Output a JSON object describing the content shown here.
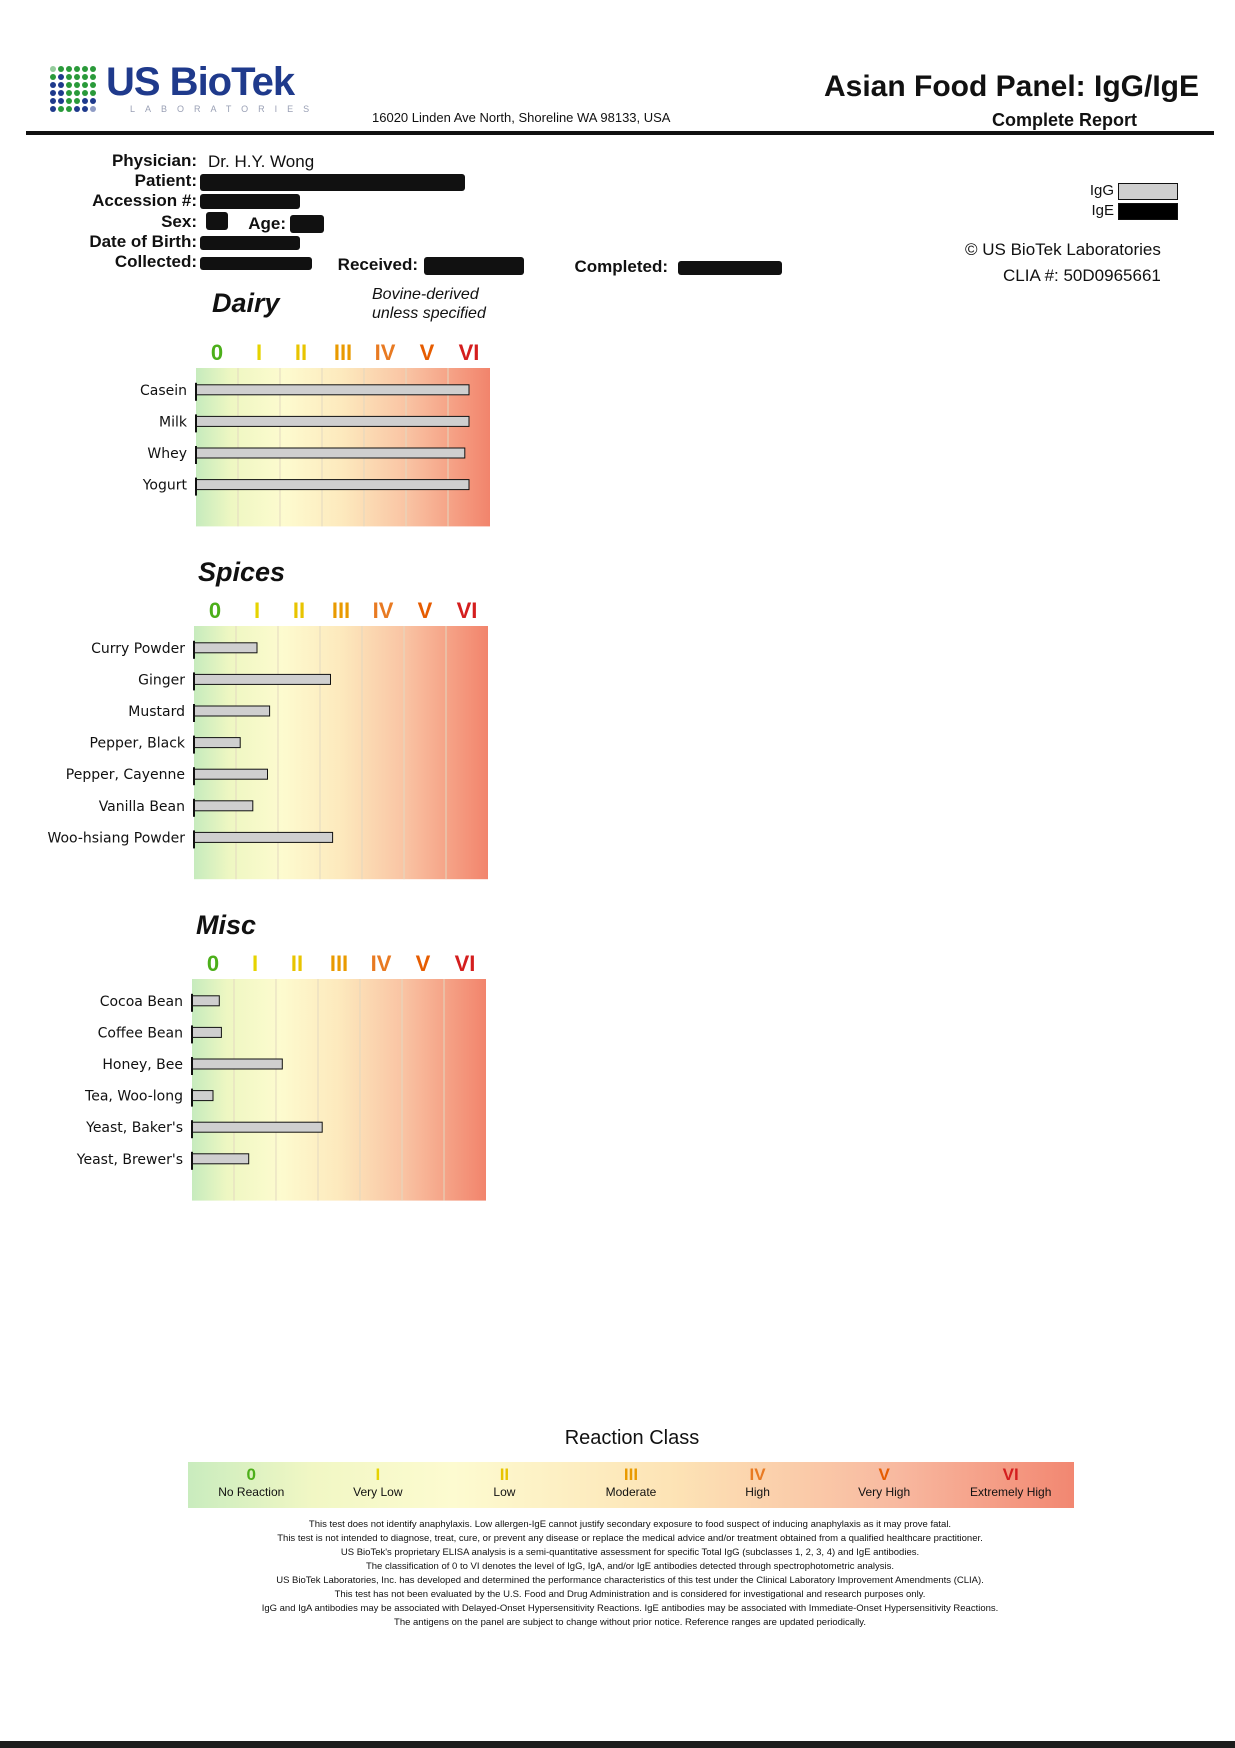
{
  "header": {
    "logo_text": "US BioTek",
    "logo_sub": "LABORATORIES",
    "address": "16020 Linden Ave North, Shoreline WA 98133, USA",
    "title": "Asian Food Panel: IgG/IgE",
    "subtitle": "Complete Report"
  },
  "patient_info": {
    "physician_label": "Physician:",
    "physician": "Dr. H.Y. Wong",
    "patient_label": "Patient:",
    "accession_label": "Accession #:",
    "sex_label": "Sex:",
    "age_label": "Age:",
    "dob_label": "Date of Birth:",
    "collected_label": "Collected:",
    "received_label": "Received:",
    "completed_label": "Completed:"
  },
  "legend": {
    "igg_label": "IgG",
    "ige_label": "IgE",
    "igg_color": "#cfcfcf",
    "ige_color": "#000000"
  },
  "lab": {
    "copyright": "© US BioTek Laboratories",
    "clia": "CLIA #: 50D0965661"
  },
  "chart_data": [
    {
      "type": "bar",
      "title": "Dairy",
      "note": [
        "Bovine-derived",
        "unless specified"
      ],
      "class_labels": [
        "0",
        "I",
        "II",
        "III",
        "IV",
        "V",
        "VI"
      ],
      "xlim": [
        0,
        7
      ],
      "categories": [
        "Casein",
        "Milk",
        "Whey",
        "Yogurt"
      ],
      "series": [
        {
          "name": "IgG",
          "values": [
            6.5,
            6.5,
            6.4,
            6.5
          ]
        }
      ]
    },
    {
      "type": "bar",
      "title": "Spices",
      "class_labels": [
        "0",
        "I",
        "II",
        "III",
        "IV",
        "V",
        "VI"
      ],
      "xlim": [
        0,
        7
      ],
      "categories": [
        "Curry Powder",
        "Ginger",
        "Mustard",
        "Pepper, Black",
        "Pepper, Cayenne",
        "Vanilla Bean",
        "Woo-hsiang Powder"
      ],
      "series": [
        {
          "name": "IgG",
          "values": [
            1.5,
            3.25,
            1.8,
            1.1,
            1.75,
            1.4,
            3.3
          ]
        }
      ]
    },
    {
      "type": "bar",
      "title": "Misc",
      "class_labels": [
        "0",
        "I",
        "II",
        "III",
        "IV",
        "V",
        "VI"
      ],
      "xlim": [
        0,
        7
      ],
      "categories": [
        "Cocoa Bean",
        "Coffee Bean",
        "Honey, Bee",
        "Tea, Woo-long",
        "Yeast, Baker's",
        "Yeast, Brewer's"
      ],
      "series": [
        {
          "name": "IgG",
          "values": [
            0.65,
            0.7,
            2.15,
            0.5,
            3.1,
            1.35
          ]
        }
      ]
    }
  ],
  "class_colors": [
    "#4caf1a",
    "#e6d300",
    "#e8c400",
    "#e99a00",
    "#e87a22",
    "#e65c00",
    "#d41e1e"
  ],
  "reaction_class": {
    "title": "Reaction Class",
    "items": [
      {
        "num": "0",
        "label": "No Reaction"
      },
      {
        "num": "I",
        "label": "Very Low"
      },
      {
        "num": "II",
        "label": "Low"
      },
      {
        "num": "III",
        "label": "Moderate"
      },
      {
        "num": "IV",
        "label": "High"
      },
      {
        "num": "V",
        "label": "Very High"
      },
      {
        "num": "VI",
        "label": "Extremely High"
      }
    ]
  },
  "disclaimer": [
    "This test does not identify anaphylaxis. Low allergen-IgE cannot justify secondary exposure to food suspect of inducing anaphylaxis as it may prove fatal.",
    "This test is not intended to diagnose, treat, cure, or prevent any disease or replace the medical advice and/or treatment obtained from a qualified healthcare practitioner.",
    "US BioTek's proprietary ELISA analysis is a semi-quantitative assessment for specific Total IgG (subclasses 1, 2, 3, 4) and IgE antibodies.",
    "The classification of 0 to VI denotes the level of IgG, IgA, and/or IgE antibodies detected through spectrophotometric analysis.",
    "US BioTek Laboratories, Inc. has developed and determined the performance characteristics of this test under the Clinical Laboratory Improvement Amendments (CLIA).",
    "This test has not been evaluated by the U.S. Food and Drug Administration and is considered for investigational and research purposes only.",
    "IgG and IgA antibodies may be associated with Delayed-Onset Hypersensitivity Reactions. IgE antibodies may be associated with Immediate-Onset Hypersensitivity Reactions.",
    "The antigens on the panel are subject to change without prior notice. Reference ranges are updated periodically."
  ]
}
